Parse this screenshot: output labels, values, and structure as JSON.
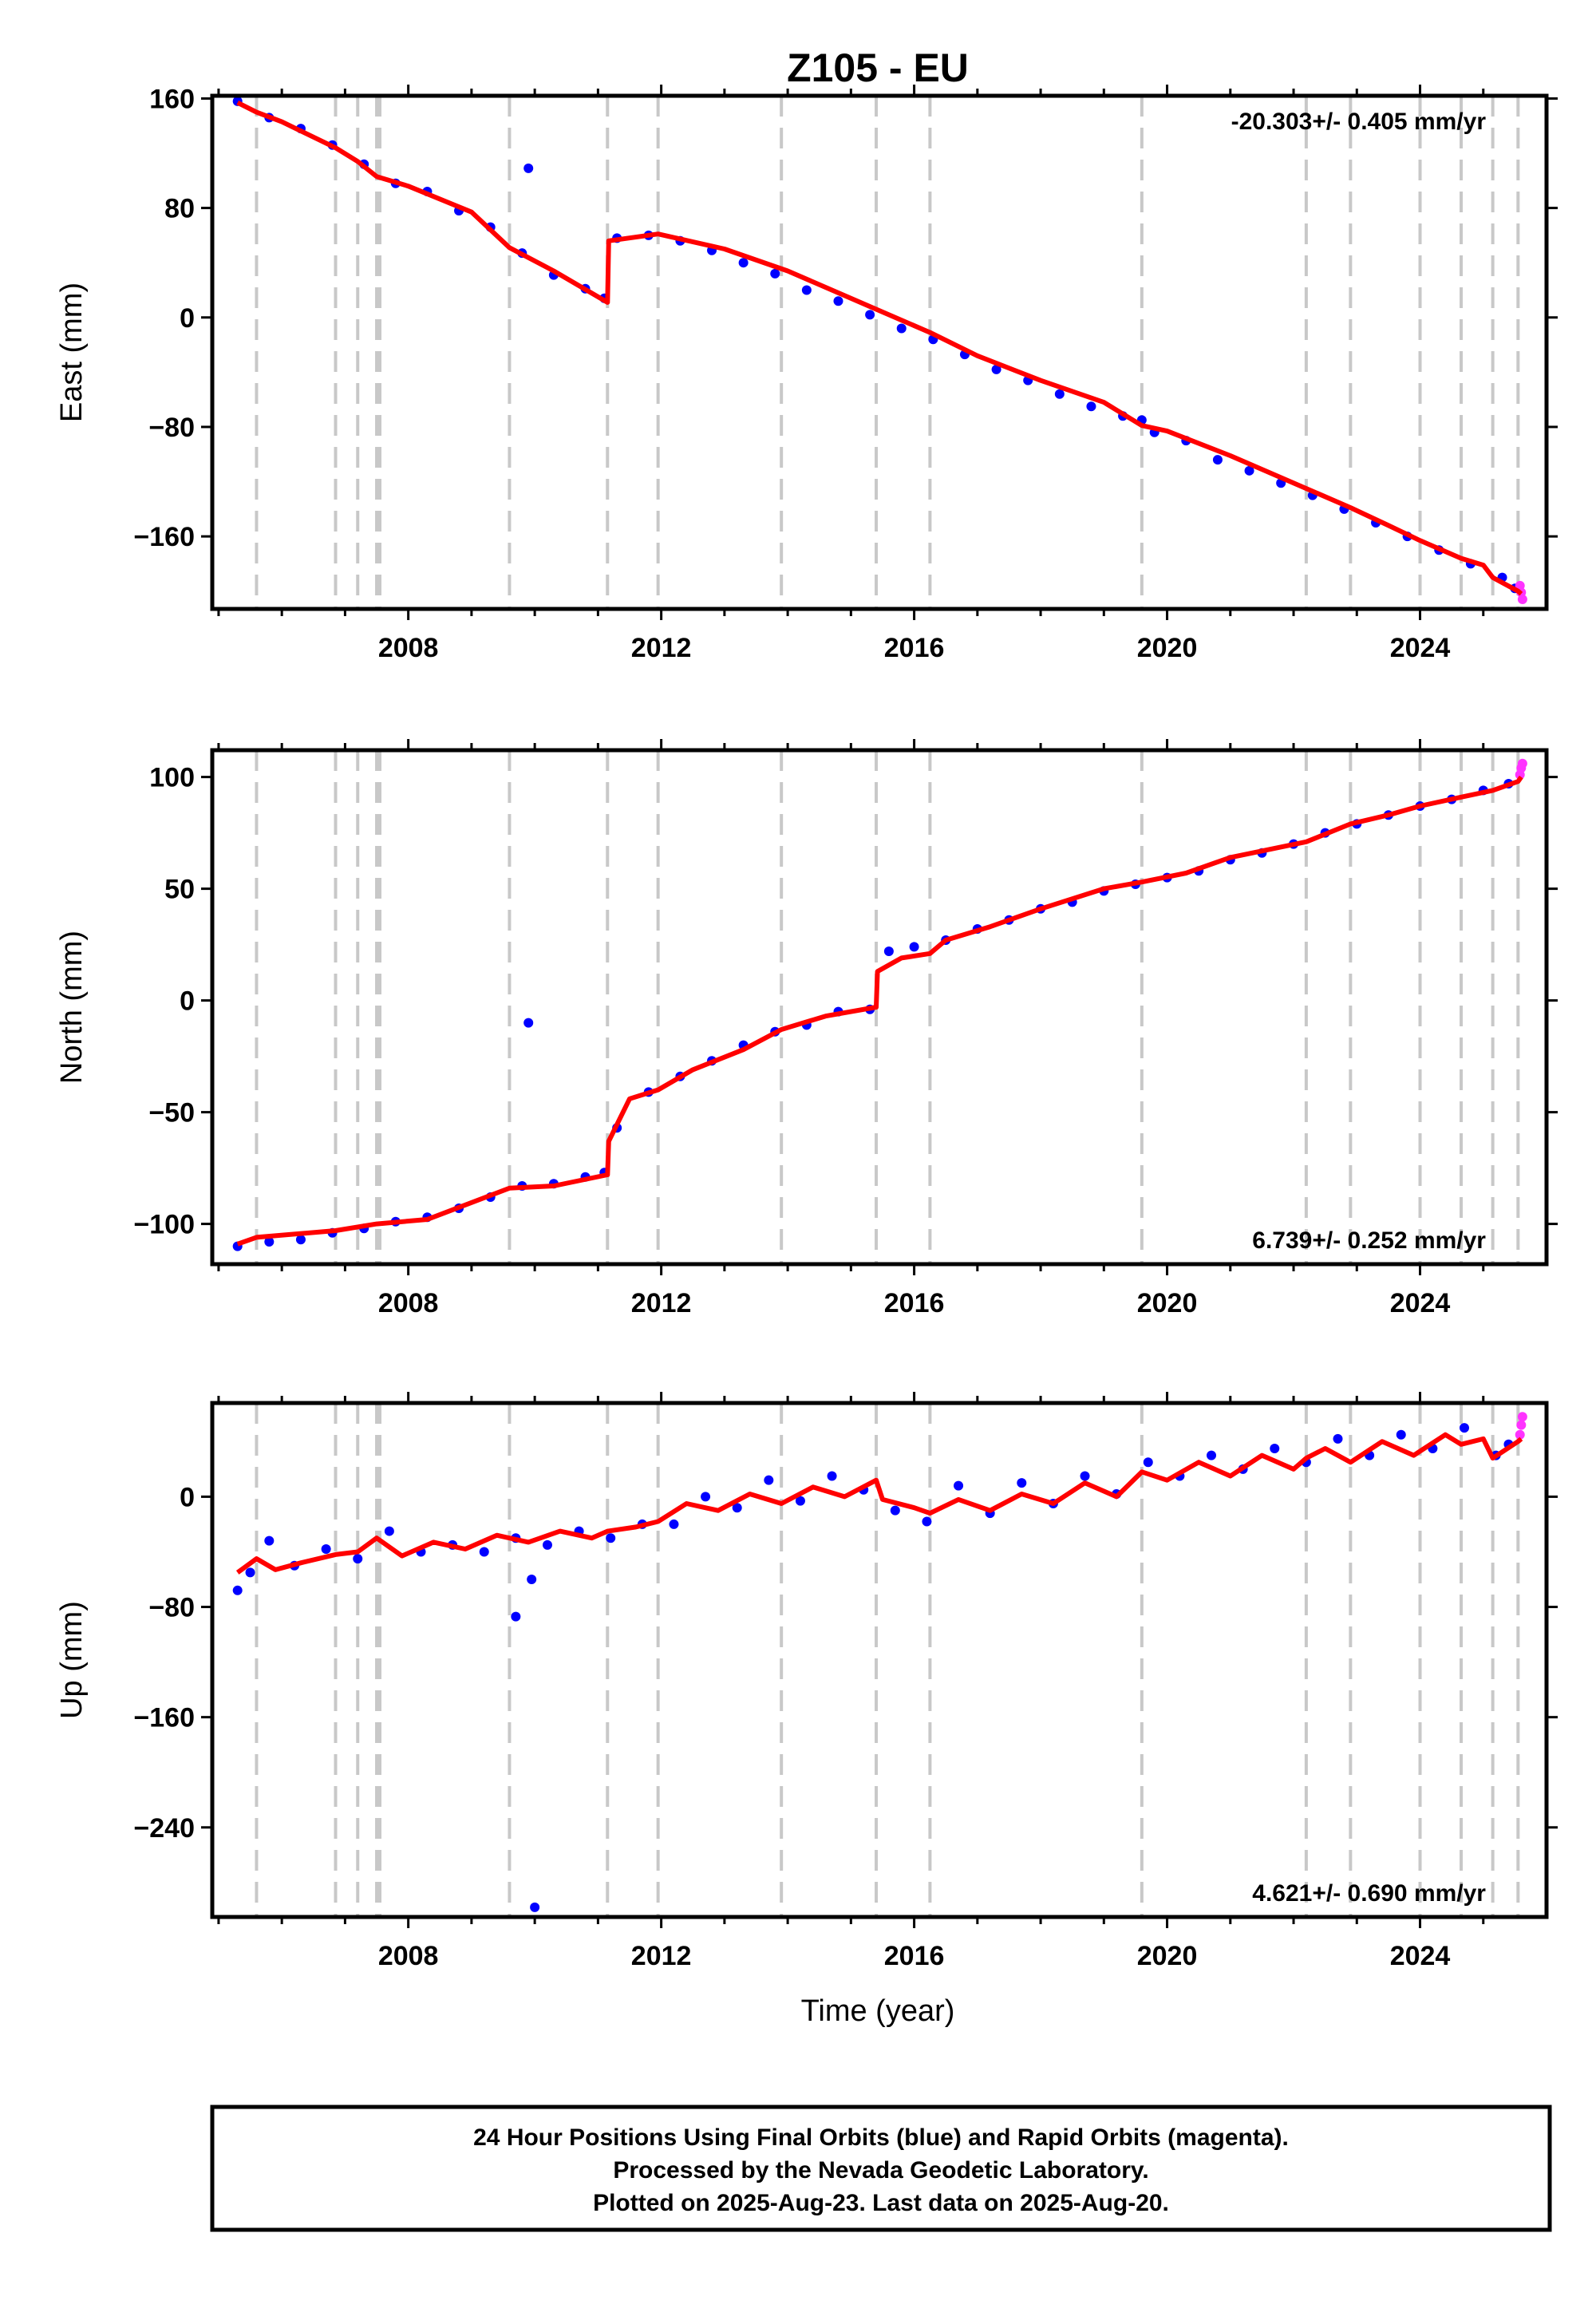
{
  "chart_data": {
    "type": "scatter",
    "title": "Z105 - EU",
    "xlabel": "Time (year)",
    "xlim": [
      2004.9,
      2026.0
    ],
    "x_ticks": [
      "2008",
      "2012",
      "2016",
      "2020",
      "2024"
    ],
    "grid": false,
    "event_lines": [
      2005.6,
      2006.85,
      2007.2,
      2007.5,
      2007.55,
      2009.6,
      2011.15,
      2011.95,
      2013.9,
      2015.4,
      2016.25,
      2019.6,
      2022.2,
      2022.9,
      2024.0,
      2024.65,
      2025.15,
      2025.55
    ],
    "colors": {
      "final_orbits": "#0000ff",
      "rapid_orbits": "#ff33ff",
      "model": "#ff0000",
      "event_line": "#c8c8c8"
    },
    "panels": [
      {
        "ylabel": "East (mm)",
        "ylim": [
          -213,
          162
        ],
        "y_ticks": [
          "160",
          "80",
          "0",
          "-80",
          "-160"
        ],
        "rate_label": "-20.303+/- 0.405 mm/yr",
        "rate_position": "top-right",
        "model": {
          "x": [
            2005.3,
            2005.6,
            2006.0,
            2006.85,
            2007.2,
            2007.5,
            2008.0,
            2009.0,
            2009.6,
            2010.3,
            2011.15,
            2011.17,
            2011.95,
            2013.0,
            2014.0,
            2015.4,
            2016.25,
            2017.0,
            2018.0,
            2019.0,
            2019.6,
            2020.0,
            2021.0,
            2022.2,
            2022.9,
            2023.5,
            2024.0,
            2024.65,
            2025.0,
            2025.15,
            2025.55,
            2025.6
          ],
          "y": [
            157,
            150,
            143,
            124,
            114,
            103,
            96,
            77,
            51,
            34,
            11,
            56,
            61,
            50,
            34,
            6,
            -11,
            -28,
            -46,
            -62,
            -79,
            -83,
            -101,
            -125,
            -139,
            -152,
            -163,
            -176,
            -181,
            -190,
            -200,
            -202
          ]
        },
        "final_points": {
          "x": [
            2005.3,
            2005.8,
            2006.3,
            2006.8,
            2007.3,
            2007.8,
            2008.3,
            2008.8,
            2009.3,
            2009.8,
            2010.3,
            2010.8,
            2011.1,
            2011.3,
            2011.8,
            2012.3,
            2012.8,
            2013.3,
            2013.8,
            2014.3,
            2014.8,
            2015.3,
            2015.8,
            2016.3,
            2016.8,
            2017.3,
            2017.8,
            2018.3,
            2018.8,
            2019.3,
            2019.8,
            2020.3,
            2020.8,
            2021.3,
            2021.8,
            2022.3,
            2022.8,
            2023.3,
            2023.8,
            2024.3,
            2024.8,
            2025.3,
            2025.5,
            2009.9,
            2019.6
          ],
          "y": [
            158,
            146,
            138,
            126,
            112,
            98,
            92,
            78,
            66,
            47,
            31,
            21,
            14,
            58,
            60,
            56,
            49,
            40,
            32,
            20,
            12,
            2,
            -8,
            -16,
            -27,
            -38,
            -46,
            -56,
            -65,
            -72,
            -84,
            -90,
            -104,
            -112,
            -121,
            -130,
            -140,
            -150,
            -160,
            -170,
            -180,
            -190,
            -198,
            109,
            -75
          ]
        },
        "rapid_points": {
          "x": [
            2025.58,
            2025.6,
            2025.62
          ],
          "y": [
            -196,
            -201,
            -206
          ]
        }
      },
      {
        "ylabel": "North (mm)",
        "ylim": [
          -118,
          112
        ],
        "y_ticks": [
          "100",
          "50",
          "0",
          "-50",
          "-100"
        ],
        "rate_label": "6.739+/- 0.252 mm/yr",
        "rate_position": "bottom-right",
        "model": {
          "x": [
            2005.3,
            2005.6,
            2006.85,
            2007.5,
            2008.3,
            2009.6,
            2010.3,
            2011.15,
            2011.17,
            2011.5,
            2011.95,
            2012.5,
            2013.3,
            2013.9,
            2014.6,
            2015.4,
            2015.42,
            2015.8,
            2016.25,
            2016.5,
            2017.2,
            2018.0,
            2019.0,
            2019.6,
            2020.3,
            2021.0,
            2022.2,
            2022.9,
            2023.5,
            2024.0,
            2024.65,
            2025.15,
            2025.55,
            2025.6
          ],
          "y": [
            -109,
            -106,
            -103,
            -100,
            -98,
            -84,
            -83,
            -78,
            -63,
            -44,
            -40,
            -31,
            -22,
            -13,
            -7,
            -3,
            13,
            19,
            21,
            27,
            33,
            41,
            50,
            53,
            57,
            64,
            71,
            79,
            83,
            87,
            91,
            94,
            98,
            100
          ]
        },
        "final_points": {
          "x": [
            2005.3,
            2005.8,
            2006.3,
            2006.8,
            2007.3,
            2007.8,
            2008.3,
            2008.8,
            2009.3,
            2009.8,
            2010.3,
            2010.8,
            2011.1,
            2011.3,
            2011.8,
            2012.3,
            2012.8,
            2013.3,
            2013.8,
            2014.3,
            2014.8,
            2015.3,
            2015.6,
            2016.0,
            2016.5,
            2017.0,
            2017.5,
            2018.0,
            2018.5,
            2019.0,
            2019.5,
            2020.0,
            2020.5,
            2021.0,
            2021.5,
            2022.0,
            2022.5,
            2023.0,
            2023.5,
            2024.0,
            2024.5,
            2025.0,
            2025.4,
            2009.9
          ],
          "y": [
            -110,
            -108,
            -107,
            -104,
            -102,
            -99,
            -97,
            -93,
            -88,
            -83,
            -82,
            -79,
            -77,
            -57,
            -41,
            -34,
            -27,
            -20,
            -14,
            -11,
            -5,
            -4,
            22,
            24,
            27,
            32,
            36,
            41,
            44,
            49,
            52,
            55,
            58,
            63,
            66,
            70,
            75,
            79,
            83,
            87,
            90,
            94,
            97,
            -10
          ]
        },
        "rapid_points": {
          "x": [
            2025.58,
            2025.6,
            2025.62
          ],
          "y": [
            101,
            104,
            106
          ]
        }
      },
      {
        "ylabel": "Up (mm)",
        "ylim": [
          -305,
          68
        ],
        "y_ticks": [
          "0",
          "-80",
          "-160",
          "-240"
        ],
        "rate_label": "4.621+/- 0.690 mm/yr",
        "rate_position": "bottom-right",
        "model": {
          "x": [
            2005.3,
            2005.6,
            2005.9,
            2006.3,
            2006.85,
            2007.2,
            2007.5,
            2007.9,
            2008.4,
            2008.9,
            2009.4,
            2009.9,
            2010.4,
            2010.9,
            2011.15,
            2011.6,
            2011.95,
            2012.4,
            2012.9,
            2013.4,
            2013.9,
            2014.4,
            2014.9,
            2015.4,
            2015.5,
            2016.0,
            2016.25,
            2016.7,
            2017.2,
            2017.7,
            2018.2,
            2018.7,
            2019.2,
            2019.6,
            2020.0,
            2020.5,
            2021.0,
            2021.5,
            2022.0,
            2022.2,
            2022.5,
            2022.9,
            2023.4,
            2023.9,
            2024.0,
            2024.4,
            2024.65,
            2025.0,
            2025.15,
            2025.55,
            2025.6
          ],
          "y": [
            -55,
            -45,
            -53,
            -48,
            -42,
            -40,
            -30,
            -43,
            -33,
            -38,
            -28,
            -33,
            -25,
            -30,
            -25,
            -22,
            -18,
            -5,
            -10,
            2,
            -5,
            7,
            0,
            12,
            -2,
            -8,
            -12,
            -2,
            -10,
            2,
            -5,
            10,
            0,
            18,
            12,
            25,
            15,
            30,
            20,
            28,
            35,
            25,
            40,
            30,
            33,
            45,
            38,
            42,
            28,
            40,
            42
          ]
        },
        "final_points": {
          "x": [
            2005.3,
            2005.5,
            2005.8,
            2006.2,
            2006.7,
            2007.2,
            2007.7,
            2008.2,
            2008.7,
            2009.2,
            2009.7,
            2010.2,
            2010.7,
            2011.2,
            2011.7,
            2012.2,
            2012.7,
            2013.2,
            2013.7,
            2014.2,
            2014.7,
            2015.2,
            2015.7,
            2016.2,
            2016.7,
            2017.2,
            2017.7,
            2018.2,
            2018.7,
            2019.2,
            2019.7,
            2020.2,
            2020.7,
            2021.2,
            2021.7,
            2022.2,
            2022.7,
            2023.2,
            2023.7,
            2024.2,
            2024.7,
            2025.2,
            2025.4,
            2009.7,
            2009.95,
            2010.0
          ],
          "y": [
            -68,
            -55,
            -32,
            -50,
            -38,
            -45,
            -25,
            -40,
            -35,
            -40,
            -30,
            -35,
            -25,
            -30,
            -20,
            -20,
            0,
            -8,
            12,
            -3,
            15,
            5,
            -10,
            -18,
            8,
            -12,
            10,
            -5,
            15,
            2,
            25,
            15,
            30,
            20,
            35,
            25,
            42,
            30,
            45,
            35,
            50,
            30,
            38,
            -87,
            -60,
            -298
          ]
        },
        "rapid_points": {
          "x": [
            2025.58,
            2025.6,
            2025.62
          ],
          "y": [
            45,
            52,
            58
          ]
        }
      }
    ]
  },
  "footer": {
    "line1": "24 Hour Positions Using Final Orbits (blue) and Rapid Orbits (magenta).",
    "line2": "Processed by the Nevada Geodetic Laboratory.",
    "line3": "Plotted on 2025-Aug-23. Last data on 2025-Aug-20."
  }
}
